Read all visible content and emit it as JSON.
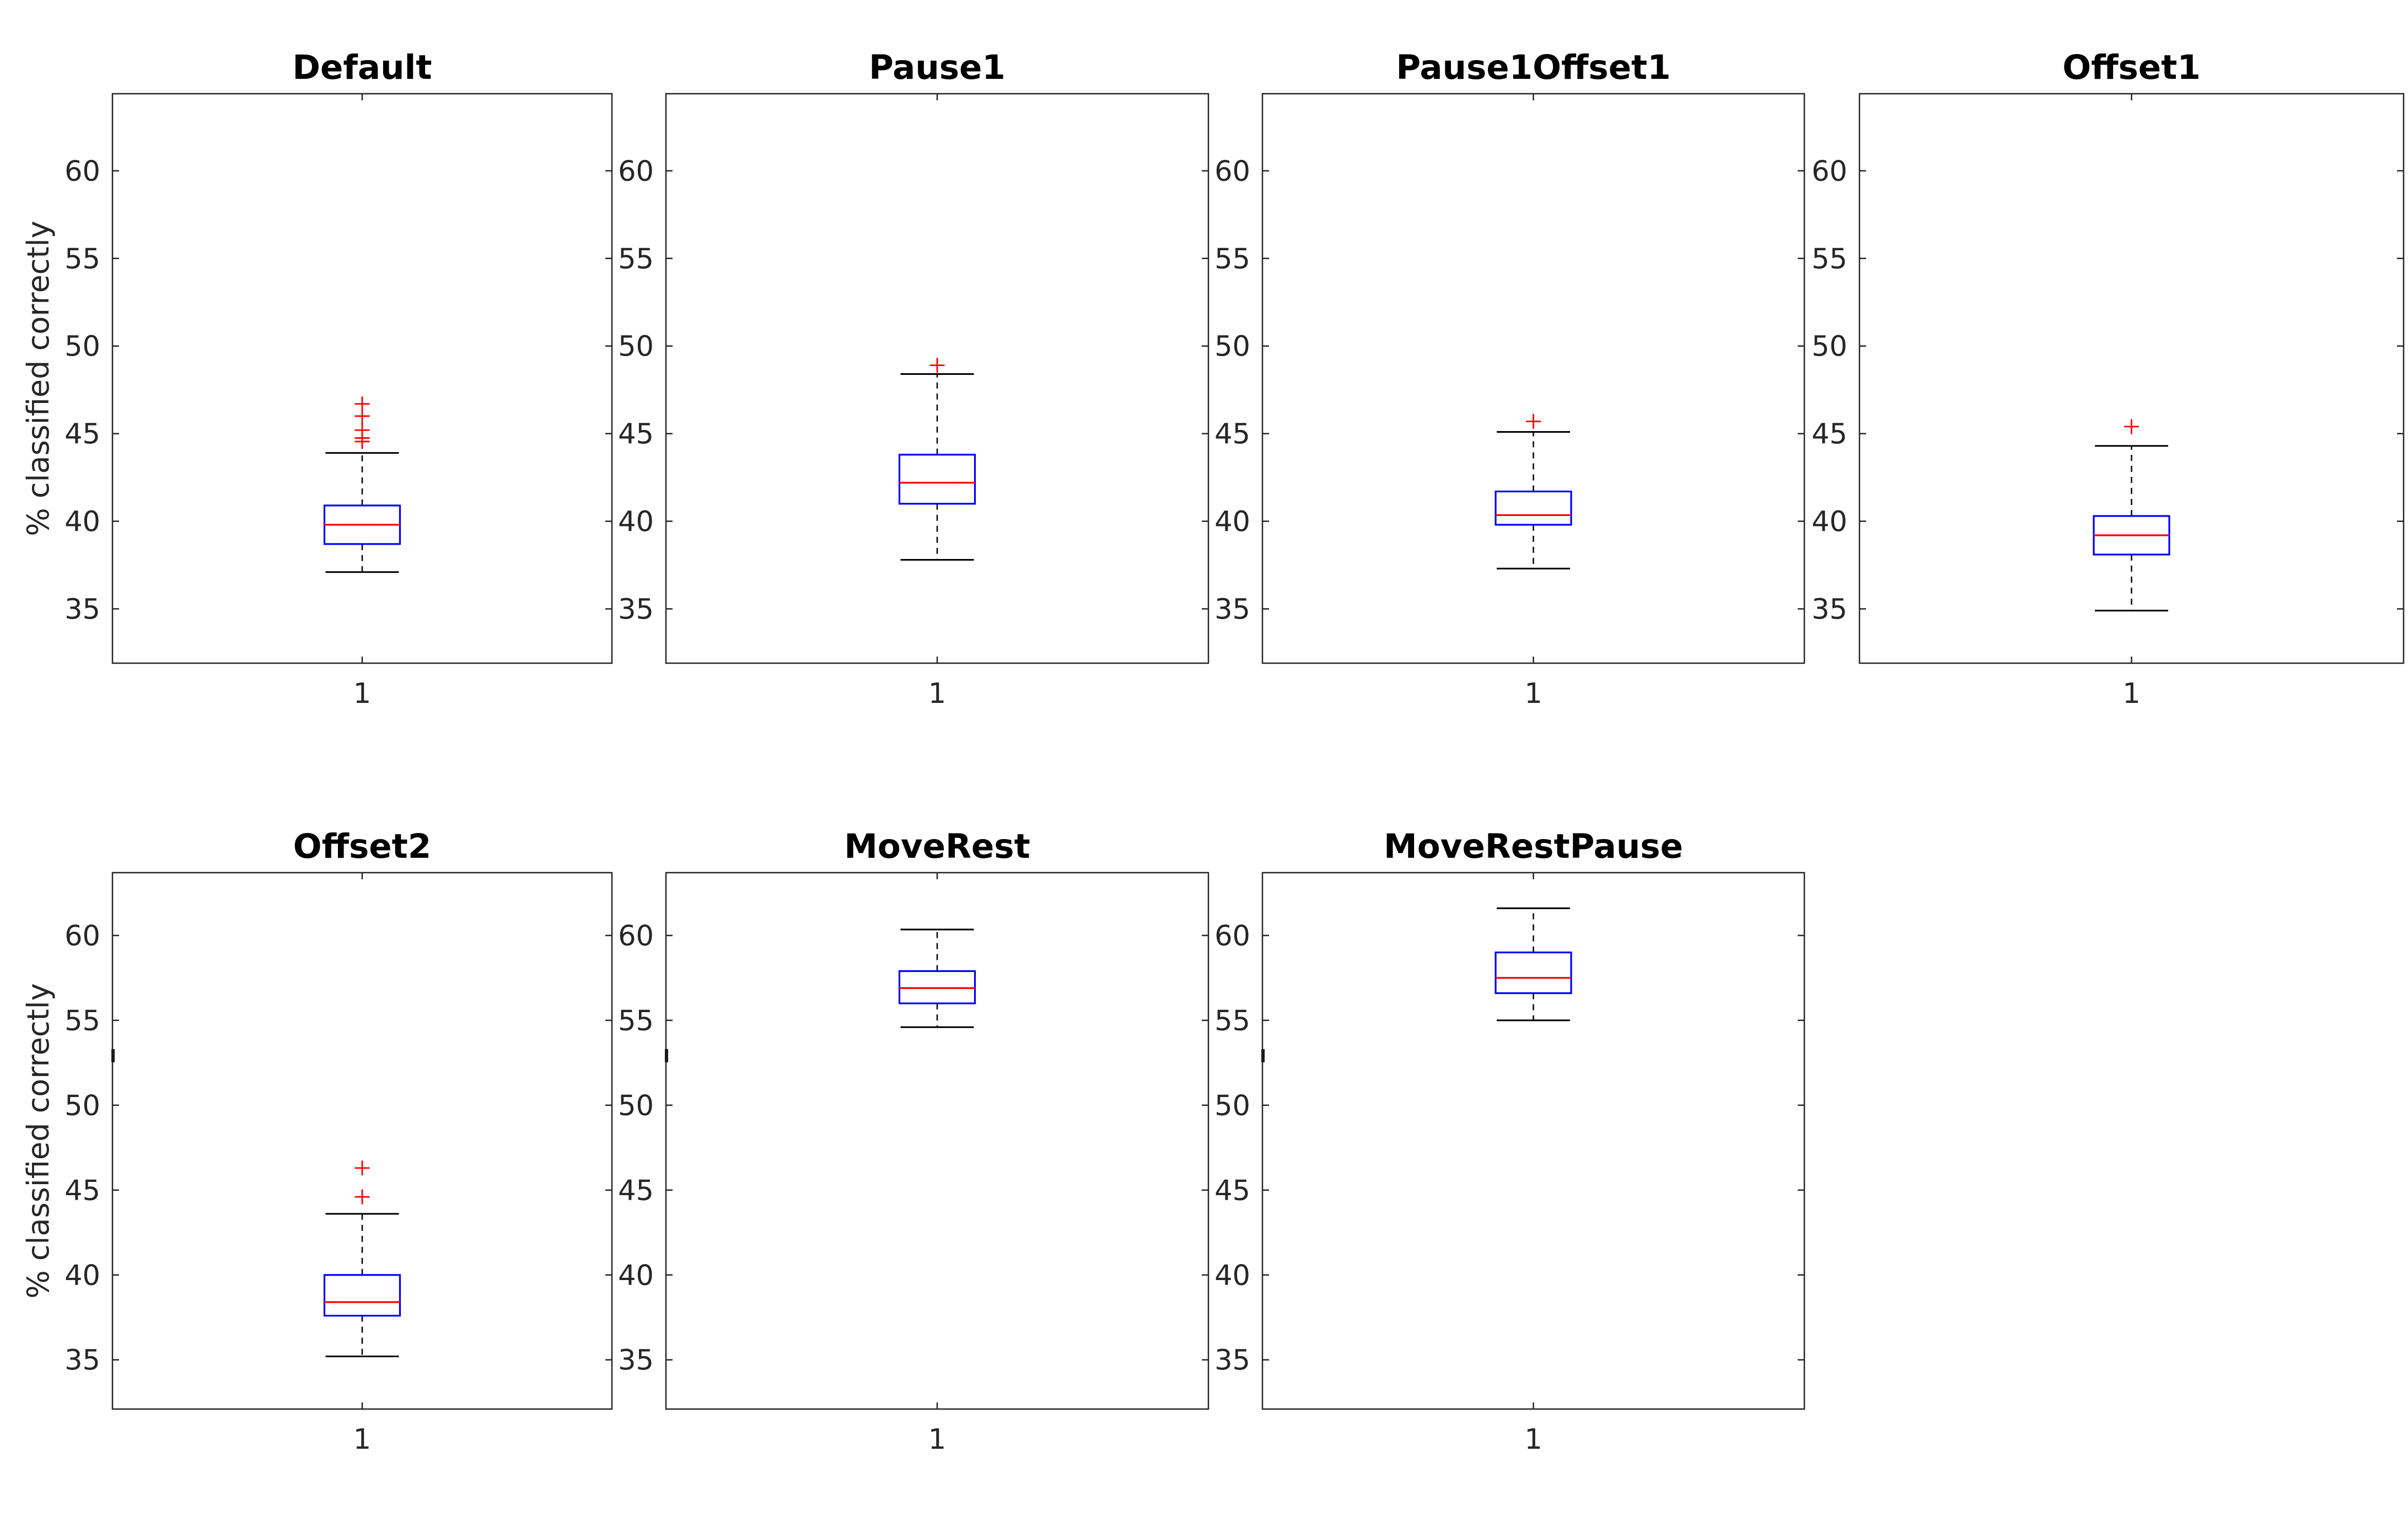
{
  "figure": {
    "background": "#ffffff"
  },
  "style": {
    "axis_color": "#262626",
    "tick_label_color": "#262626",
    "title_color": "#000000",
    "box_color": "#0000ff",
    "median_color": "#ff0000",
    "whisker_color": "#000000",
    "cap_color": "#000000",
    "outlier_color": "#ff0000"
  },
  "ylabel": "% classified correctly",
  "chart_data": [
    {
      "type": "box",
      "title": "Default",
      "x_tick_label": "1",
      "yticks": [
        35,
        40,
        45,
        50,
        55,
        60
      ],
      "ylim": [
        31.9,
        64.4
      ],
      "has_ylabel": true,
      "stray_spine_mark": false,
      "stats": {
        "whisker_low": 37.1,
        "q1": 38.7,
        "median": 39.8,
        "q3": 40.9,
        "whisker_high": 43.9
      },
      "outliers": [
        44.55,
        44.75,
        45.2,
        46.0,
        46.7
      ]
    },
    {
      "type": "box",
      "title": "Pause1",
      "x_tick_label": "1",
      "yticks": [
        35,
        40,
        45,
        50,
        55,
        60
      ],
      "ylim": [
        31.9,
        64.4
      ],
      "has_ylabel": false,
      "stray_spine_mark": false,
      "stats": {
        "whisker_low": 37.8,
        "q1": 41.0,
        "median": 42.2,
        "q3": 43.8,
        "whisker_high": 48.4
      },
      "outliers": [
        48.9
      ]
    },
    {
      "type": "box",
      "title": "Pause1Offset1",
      "x_tick_label": "1",
      "yticks": [
        35,
        40,
        45,
        50,
        55,
        60
      ],
      "ylim": [
        31.9,
        64.4
      ],
      "has_ylabel": false,
      "stray_spine_mark": false,
      "stats": {
        "whisker_low": 37.3,
        "q1": 39.8,
        "median": 40.35,
        "q3": 41.7,
        "whisker_high": 45.1
      },
      "outliers": [
        45.7
      ]
    },
    {
      "type": "box",
      "title": "Offset1",
      "x_tick_label": "1",
      "yticks": [
        35,
        40,
        45,
        50,
        55,
        60
      ],
      "ylim": [
        31.9,
        64.4
      ],
      "has_ylabel": false,
      "stray_spine_mark": false,
      "stats": {
        "whisker_low": 34.9,
        "q1": 38.1,
        "median": 39.2,
        "q3": 40.3,
        "whisker_high": 44.3
      },
      "outliers": [
        45.4
      ]
    },
    {
      "type": "box",
      "title": "Offset2",
      "x_tick_label": "1",
      "yticks": [
        35,
        40,
        45,
        50,
        55,
        60
      ],
      "ylim": [
        32.1,
        63.7
      ],
      "has_ylabel": true,
      "stray_spine_mark": true,
      "stats": {
        "whisker_low": 35.2,
        "q1": 37.6,
        "median": 38.4,
        "q3": 40.0,
        "whisker_high": 43.6
      },
      "outliers": [
        44.6,
        46.3
      ]
    },
    {
      "type": "box",
      "title": "MoveRest",
      "x_tick_label": "1",
      "yticks": [
        35,
        40,
        45,
        50,
        55,
        60
      ],
      "ylim": [
        32.1,
        63.7
      ],
      "has_ylabel": false,
      "stray_spine_mark": true,
      "stats": {
        "whisker_low": 54.6,
        "q1": 56.0,
        "median": 56.9,
        "q3": 57.9,
        "whisker_high": 60.35
      },
      "outliers": []
    },
    {
      "type": "box",
      "title": "MoveRestPause",
      "x_tick_label": "1",
      "yticks": [
        35,
        40,
        45,
        50,
        55,
        60
      ],
      "ylim": [
        32.1,
        63.7
      ],
      "has_ylabel": false,
      "stray_spine_mark": true,
      "stats": {
        "whisker_low": 55.0,
        "q1": 56.6,
        "median": 57.5,
        "q3": 59.0,
        "whisker_high": 61.6
      },
      "outliers": []
    }
  ]
}
